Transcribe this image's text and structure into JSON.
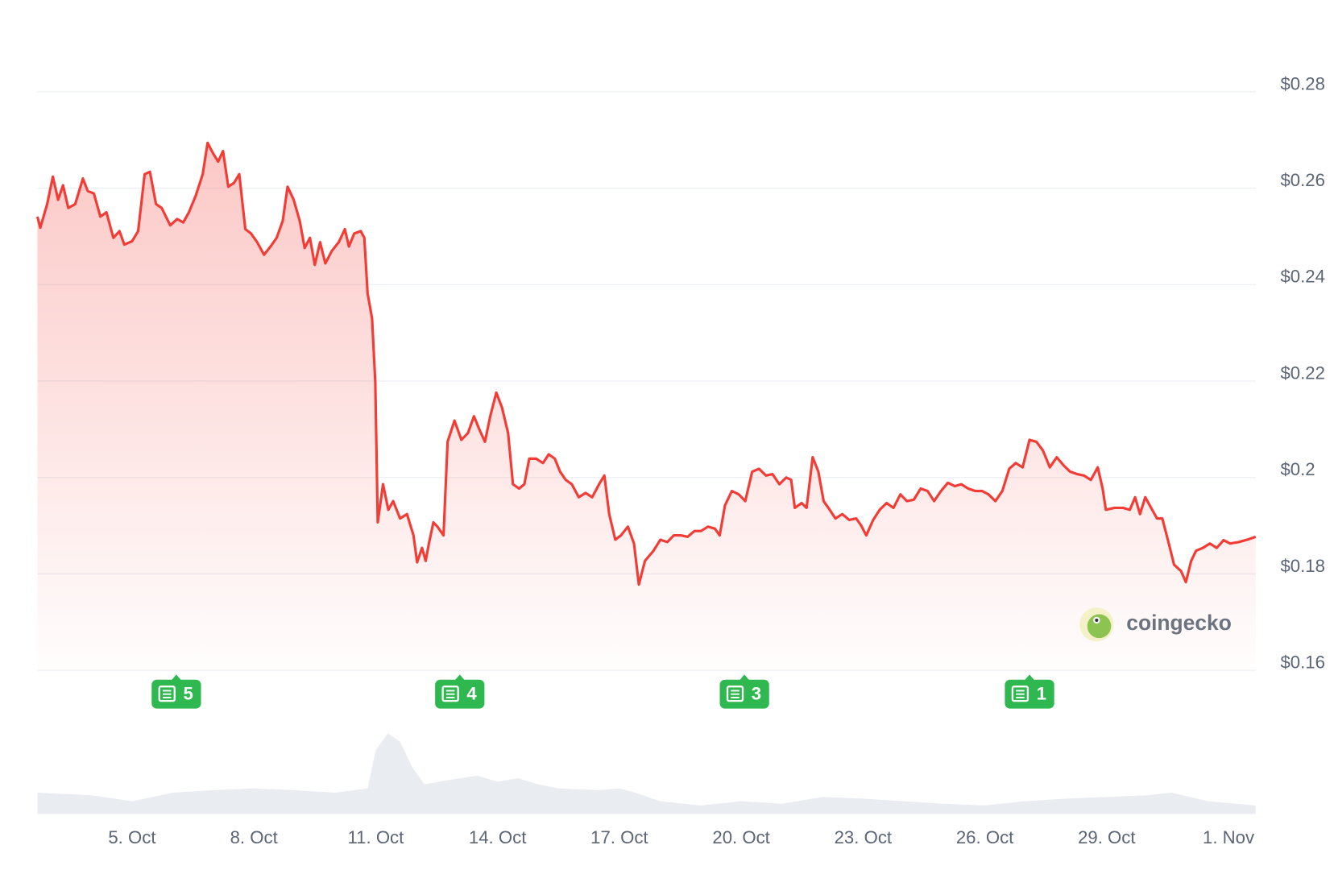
{
  "chart_data": {
    "type": "line",
    "area": true,
    "grid": true,
    "color": "#f23c35",
    "xlim": [
      2.67,
      32.67
    ],
    "xticks": [
      {
        "value": 5,
        "label": "5. Oct"
      },
      {
        "value": 8,
        "label": "8. Oct"
      },
      {
        "value": 11,
        "label": "11. Oct"
      },
      {
        "value": 14,
        "label": "14. Oct"
      },
      {
        "value": 17,
        "label": "17. Oct"
      },
      {
        "value": 20,
        "label": "20. Oct"
      },
      {
        "value": 23,
        "label": "23. Oct"
      },
      {
        "value": 26,
        "label": "26. Oct"
      },
      {
        "value": 29,
        "label": "29. Oct"
      },
      {
        "value": 32,
        "label": "1. Nov"
      }
    ],
    "ylim": [
      0.16,
      0.28
    ],
    "yticks": [
      {
        "value": 0.16,
        "label": "$0.16"
      },
      {
        "value": 0.18,
        "label": "$0.18"
      },
      {
        "value": 0.2,
        "label": "$0.2"
      },
      {
        "value": 0.22,
        "label": "$0.22"
      },
      {
        "value": 0.24,
        "label": "$0.24"
      },
      {
        "value": 0.26,
        "label": "$0.26"
      },
      {
        "value": 0.28,
        "label": "$0.28"
      }
    ],
    "x": [
      2.67,
      2.74,
      2.91,
      3.05,
      3.18,
      3.3,
      3.43,
      3.6,
      3.79,
      3.91,
      4.06,
      4.22,
      4.37,
      4.54,
      4.69,
      4.81,
      5.0,
      5.15,
      5.31,
      5.44,
      5.59,
      5.73,
      5.94,
      6.11,
      6.26,
      6.4,
      6.57,
      6.74,
      6.86,
      6.99,
      7.12,
      7.24,
      7.37,
      7.51,
      7.64,
      7.79,
      7.93,
      8.08,
      8.25,
      8.41,
      8.56,
      8.71,
      8.83,
      8.98,
      9.13,
      9.25,
      9.38,
      9.5,
      9.63,
      9.76,
      9.92,
      10.09,
      10.24,
      10.34,
      10.47,
      10.63,
      10.72,
      10.8,
      10.91,
      10.99,
      11.05,
      11.18,
      11.31,
      11.43,
      11.6,
      11.77,
      11.93,
      12.02,
      12.14,
      12.23,
      12.31,
      12.42,
      12.52,
      12.67,
      12.77,
      12.94,
      13.11,
      13.27,
      13.42,
      13.55,
      13.69,
      13.82,
      13.97,
      14.11,
      14.26,
      14.38,
      14.53,
      14.66,
      14.78,
      14.95,
      15.12,
      15.26,
      15.41,
      15.54,
      15.68,
      15.83,
      16.0,
      16.17,
      16.33,
      16.5,
      16.63,
      16.75,
      16.9,
      17.04,
      17.21,
      17.36,
      17.48,
      17.63,
      17.84,
      18.01,
      18.18,
      18.34,
      18.51,
      18.68,
      18.85,
      19.01,
      19.18,
      19.35,
      19.47,
      19.6,
      19.77,
      19.94,
      20.1,
      20.27,
      20.44,
      20.61,
      20.77,
      20.94,
      21.11,
      21.23,
      21.32,
      21.49,
      21.61,
      21.76,
      21.9,
      22.03,
      22.18,
      22.32,
      22.49,
      22.66,
      22.83,
      22.95,
      23.08,
      23.25,
      23.41,
      23.58,
      23.75,
      23.92,
      24.08,
      24.25,
      24.42,
      24.59,
      24.75,
      24.92,
      25.09,
      25.26,
      25.42,
      25.59,
      25.76,
      25.93,
      26.09,
      26.26,
      26.43,
      26.6,
      26.76,
      26.93,
      27.1,
      27.27,
      27.43,
      27.6,
      27.77,
      27.94,
      28.1,
      28.27,
      28.44,
      28.61,
      28.78,
      28.9,
      28.98,
      29.19,
      29.4,
      29.57,
      29.7,
      29.82,
      29.95,
      30.12,
      30.24,
      30.37,
      30.53,
      30.66,
      30.83,
      30.95,
      31.08,
      31.2,
      31.37,
      31.54,
      31.71,
      31.88,
      32.04,
      32.25,
      32.46,
      32.67
    ],
    "values": [
      0.2541,
      0.2518,
      0.2567,
      0.2624,
      0.2576,
      0.2606,
      0.2559,
      0.2567,
      0.262,
      0.2594,
      0.2589,
      0.2541,
      0.255,
      0.2497,
      0.2511,
      0.2483,
      0.249,
      0.2511,
      0.2629,
      0.2634,
      0.2567,
      0.2559,
      0.2523,
      0.2536,
      0.2529,
      0.255,
      0.2585,
      0.2629,
      0.2694,
      0.2673,
      0.2655,
      0.2677,
      0.2603,
      0.2611,
      0.2629,
      0.2515,
      0.2506,
      0.2488,
      0.2462,
      0.2479,
      0.2497,
      0.2532,
      0.2603,
      0.2576,
      0.2532,
      0.2476,
      0.2497,
      0.2441,
      0.2488,
      0.2444,
      0.247,
      0.2488,
      0.2515,
      0.2479,
      0.2506,
      0.2511,
      0.2497,
      0.2382,
      0.233,
      0.2197,
      0.1907,
      0.1986,
      0.1933,
      0.1951,
      0.1915,
      0.1924,
      0.188,
      0.1824,
      0.1854,
      0.1827,
      0.1863,
      0.1907,
      0.1898,
      0.188,
      0.2074,
      0.2118,
      0.2078,
      0.2092,
      0.2127,
      0.21,
      0.2074,
      0.2127,
      0.2176,
      0.2145,
      0.2092,
      0.1986,
      0.1977,
      0.1986,
      0.2039,
      0.2039,
      0.203,
      0.2048,
      0.2039,
      0.2012,
      0.1995,
      0.1986,
      0.1959,
      0.1968,
      0.1959,
      0.1986,
      0.2004,
      0.1924,
      0.1871,
      0.188,
      0.1898,
      0.1863,
      0.1778,
      0.1827,
      0.1848,
      0.1871,
      0.1866,
      0.188,
      0.188,
      0.1877,
      0.1889,
      0.1889,
      0.1898,
      0.1894,
      0.188,
      0.1942,
      0.1972,
      0.1965,
      0.1951,
      0.2012,
      0.2018,
      0.2004,
      0.2007,
      0.1986,
      0.2,
      0.1995,
      0.1937,
      0.1947,
      0.1937,
      0.2042,
      0.2012,
      0.1951,
      0.1933,
      0.1915,
      0.1924,
      0.1912,
      0.1915,
      0.1901,
      0.188,
      0.1912,
      0.1933,
      0.1947,
      0.1937,
      0.1965,
      0.1951,
      0.1954,
      0.1977,
      0.1972,
      0.1951,
      0.1972,
      0.1989,
      0.1982,
      0.1986,
      0.1977,
      0.1972,
      0.1972,
      0.1965,
      0.1951,
      0.1972,
      0.2018,
      0.203,
      0.2021,
      0.2078,
      0.2074,
      0.2056,
      0.2021,
      0.2042,
      0.2025,
      0.2012,
      0.2007,
      0.2004,
      0.1995,
      0.2021,
      0.1977,
      0.1933,
      0.1937,
      0.1937,
      0.1933,
      0.1959,
      0.1924,
      0.1959,
      0.1933,
      0.1915,
      0.1915,
      0.1863,
      0.1819,
      0.1806,
      0.1783,
      0.1827,
      0.1848,
      0.1854,
      0.1863,
      0.1854,
      0.187,
      0.1863,
      0.1866,
      0.1871,
      0.1877
    ],
    "volume": {
      "color": "#e9edf1",
      "ylim": [
        0,
        100
      ],
      "x": [
        2.67,
        4,
        5,
        6,
        7,
        8,
        9,
        10,
        10.8,
        11.0,
        11.3,
        11.6,
        11.9,
        12.2,
        12.8,
        13.5,
        14,
        14.5,
        15,
        15.5,
        16.5,
        17,
        17.4,
        18,
        19,
        20,
        21,
        22,
        23,
        24,
        25,
        26,
        27,
        28,
        29,
        30,
        30.6,
        31.5,
        32.67
      ],
      "values": [
        25,
        22,
        15,
        25,
        28,
        30,
        28,
        25,
        30,
        75,
        95,
        85,
        55,
        35,
        40,
        45,
        38,
        42,
        35,
        30,
        28,
        30,
        25,
        15,
        10,
        15,
        12,
        20,
        18,
        15,
        12,
        10,
        15,
        18,
        20,
        22,
        25,
        15,
        10
      ]
    },
    "news": [
      {
        "x": 6.09,
        "count": 5
      },
      {
        "x": 13.07,
        "count": 4
      },
      {
        "x": 20.08,
        "count": 3
      },
      {
        "x": 27.1,
        "count": 1
      }
    ],
    "watermark": "coingecko"
  }
}
